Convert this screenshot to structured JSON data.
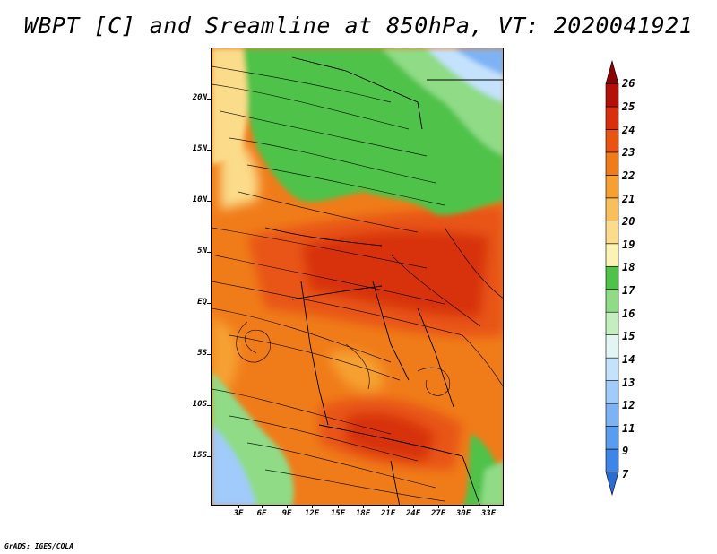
{
  "title": "WBPT [C] and Sreamline at 850hPa, VT: 2020041921",
  "credit": "GrADS: IGES/COLA",
  "y_axis_labels": [
    "20N",
    "15N",
    "10N",
    "5N",
    "EQ",
    "5S",
    "10S",
    "15S"
  ],
  "x_axis_labels": [
    "3E",
    "6E",
    "9E",
    "12E",
    "15E",
    "18E",
    "21E",
    "24E",
    "27E",
    "30E",
    "33E"
  ],
  "colorbar": {
    "labels": [
      "7",
      "9",
      "11",
      "12",
      "13",
      "14",
      "15",
      "16",
      "17",
      "18",
      "19",
      "20",
      "21",
      "22",
      "23",
      "24",
      "25",
      "26"
    ],
    "colors": [
      "#2a6cd6",
      "#3d85e6",
      "#5a9df0",
      "#7db3f5",
      "#a0cbfa",
      "#c4e2fc",
      "#e3f5f3",
      "#c5eec0",
      "#8fdb86",
      "#4fc24a",
      "#fbf3b3",
      "#fbdc8a",
      "#f8bf5c",
      "#f6a032",
      "#f07c19",
      "#e85512",
      "#d8300f",
      "#b51008",
      "#8a0404"
    ]
  },
  "colors": {
    "green": "#4fc24a",
    "light_green": "#8fdb86",
    "orange": "#f07c19",
    "red_orange": "#e85512",
    "red": "#d8300f",
    "yellow": "#fbdc8a",
    "blue": "#a0cbfa"
  }
}
